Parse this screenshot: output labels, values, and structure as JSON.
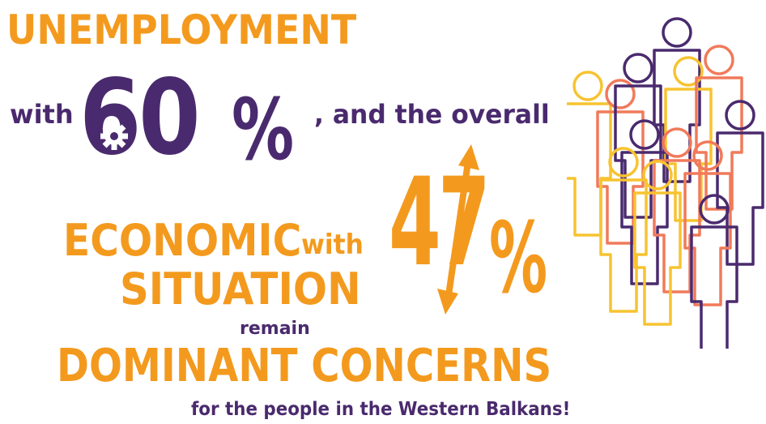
{
  "headline": {
    "unemployment": "UNEMPLOYMENT",
    "with_1": "with",
    "value_1": "60",
    "percent_1": "%",
    "connector": ", and the overall",
    "economic": "ECONOMIC",
    "with_2": "with",
    "situation": "SITUATION",
    "value_2": "47",
    "percent_2": "%",
    "remain": "remain",
    "dominant": "DOMINANT CONCERNS",
    "footer": "for the people in the Western Balkans!"
  },
  "colors": {
    "orange": "#F39A1E",
    "purple": "#4A2A6E",
    "coral": "#F07A5A",
    "yellow": "#F7C330"
  },
  "icons": [
    "gear-icon",
    "double-arrow-icon",
    "people-crowd-icon"
  ]
}
